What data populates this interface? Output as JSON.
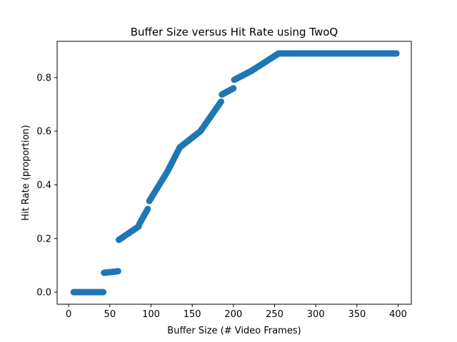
{
  "chart_data": {
    "type": "scatter",
    "title": "Buffer Size versus Hit Rate using TwoQ",
    "xlabel": "Buffer Size (# Video Frames)",
    "ylabel": "Hit Rate (proportion)",
    "xlim": [
      -14,
      416
    ],
    "ylim": [
      -0.045,
      0.935
    ],
    "xticks": [
      0,
      50,
      100,
      150,
      200,
      250,
      300,
      350,
      400
    ],
    "yticks": [
      0.0,
      0.2,
      0.4,
      0.6,
      0.8
    ],
    "ytick_labels": [
      "0.0",
      "0.2",
      "0.4",
      "0.6",
      "0.8"
    ],
    "grid": false,
    "marker_color": "#1f77b4",
    "series": [
      {
        "segments": [
          {
            "x_start": 6,
            "x_end": 42,
            "y_start": 0.0,
            "y_end": 0.0
          },
          {
            "x_start": 42,
            "x_end": 60,
            "y_start": 0.072,
            "y_end": 0.078
          },
          {
            "x_start": 61,
            "x_end": 85,
            "y_start": 0.195,
            "y_end": 0.245
          },
          {
            "x_start": 85,
            "x_end": 96,
            "y_start": 0.25,
            "y_end": 0.31
          },
          {
            "x_start": 98,
            "x_end": 120,
            "y_start": 0.34,
            "y_end": 0.45
          },
          {
            "x_start": 120,
            "x_end": 135,
            "y_start": 0.45,
            "y_end": 0.54
          },
          {
            "x_start": 135,
            "x_end": 160,
            "y_start": 0.54,
            "y_end": 0.6
          },
          {
            "x_start": 160,
            "x_end": 185,
            "y_start": 0.6,
            "y_end": 0.71
          },
          {
            "x_start": 185,
            "x_end": 200,
            "y_start": 0.735,
            "y_end": 0.76
          },
          {
            "x_start": 200,
            "x_end": 222,
            "y_start": 0.79,
            "y_end": 0.825
          },
          {
            "x_start": 222,
            "x_end": 255,
            "y_start": 0.825,
            "y_end": 0.89
          },
          {
            "x_start": 255,
            "x_end": 398,
            "y_start": 0.89,
            "y_end": 0.89
          }
        ]
      }
    ]
  }
}
